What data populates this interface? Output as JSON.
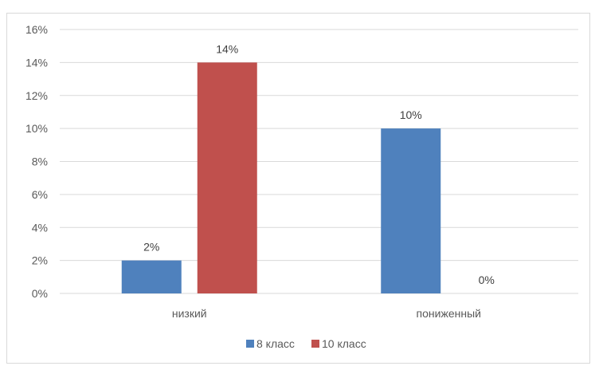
{
  "chart_data": {
    "type": "bar",
    "categories": [
      "низкий",
      "пониженный"
    ],
    "series": [
      {
        "name": "8 класс",
        "values": [
          2,
          10
        ],
        "labels": [
          "2%",
          "10%"
        ],
        "color": "#4f81bd"
      },
      {
        "name": "10 класс",
        "values": [
          14,
          0
        ],
        "labels": [
          "14%",
          "0%"
        ],
        "color": "#c0504d"
      }
    ],
    "yticks": [
      "0%",
      "2%",
      "4%",
      "6%",
      "8%",
      "10%",
      "12%",
      "14%",
      "16%"
    ],
    "ylim": [
      0,
      16
    ],
    "grid": true,
    "legend_position": "bottom"
  }
}
